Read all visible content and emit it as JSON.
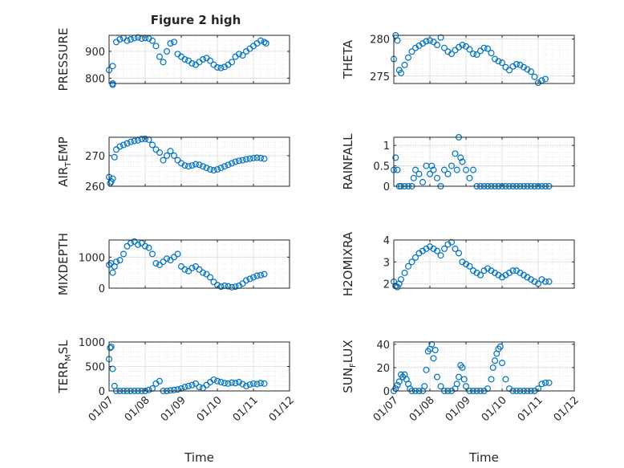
{
  "figure": {
    "title": "Figure 2 high"
  },
  "chart_data": [
    {
      "type": "scatter",
      "ylabel_parts": [
        "PRESSURE"
      ],
      "xlabel": "",
      "xlim": [
        0,
        5
      ],
      "ylim": [
        780,
        960
      ],
      "yticks": [
        800,
        900
      ],
      "xticks": [
        0,
        1,
        2,
        3,
        4,
        5
      ],
      "xticklabels": [
        "01/07",
        "01/08",
        "01/09",
        "01/10",
        "01/11",
        "01/12"
      ],
      "show_xtick_labels": false,
      "grid": true,
      "x": [
        0.0,
        0.1,
        0.1,
        0.1,
        0.2,
        0.3,
        0.4,
        0.5,
        0.6,
        0.7,
        0.8,
        0.9,
        1.0,
        1.1,
        1.2,
        1.3,
        1.4,
        1.5,
        1.6,
        1.7,
        1.8,
        1.9,
        2.0,
        2.1,
        2.2,
        2.3,
        2.4,
        2.5,
        2.6,
        2.7,
        2.8,
        2.9,
        3.0,
        3.1,
        3.2,
        3.3,
        3.4,
        3.5,
        3.6,
        3.7,
        3.8,
        3.9,
        4.0,
        4.1,
        4.2,
        4.3,
        4.35
      ],
      "y": [
        830,
        780,
        775,
        845,
        935,
        945,
        950,
        940,
        945,
        950,
        952,
        948,
        950,
        948,
        940,
        920,
        880,
        860,
        900,
        930,
        935,
        890,
        880,
        870,
        865,
        855,
        850,
        860,
        870,
        875,
        865,
        850,
        840,
        838,
        842,
        850,
        860,
        880,
        890,
        885,
        900,
        910,
        920,
        930,
        940,
        935,
        930
      ]
    },
    {
      "type": "scatter",
      "ylabel_parts": [
        "THETA"
      ],
      "xlabel": "",
      "xlim": [
        0,
        5
      ],
      "ylim": [
        274,
        280.5
      ],
      "yticks": [
        275,
        280
      ],
      "xticks": [
        0,
        1,
        2,
        3,
        4,
        5
      ],
      "xticklabels": [
        "01/07",
        "01/08",
        "01/09",
        "01/10",
        "01/11",
        "01/12"
      ],
      "show_xtick_labels": false,
      "grid": true,
      "x": [
        0.0,
        0.05,
        0.1,
        0.15,
        0.2,
        0.3,
        0.4,
        0.5,
        0.6,
        0.7,
        0.8,
        0.9,
        1.0,
        1.1,
        1.2,
        1.3,
        1.4,
        1.5,
        1.6,
        1.7,
        1.8,
        1.9,
        2.0,
        2.1,
        2.2,
        2.3,
        2.4,
        2.5,
        2.6,
        2.7,
        2.8,
        2.9,
        3.0,
        3.1,
        3.2,
        3.3,
        3.4,
        3.5,
        3.6,
        3.7,
        3.8,
        3.9,
        4.0,
        4.1,
        4.2
      ],
      "y": [
        277.3,
        280.5,
        279.8,
        275.8,
        275.4,
        276.5,
        277.5,
        278.3,
        278.8,
        279.1,
        279.4,
        279.7,
        279.8,
        279.6,
        279.2,
        280.2,
        278.8,
        278.3,
        278.0,
        278.5,
        278.9,
        279.2,
        279.0,
        278.6,
        278.0,
        277.9,
        278.4,
        278.8,
        278.7,
        278.1,
        277.3,
        277.0,
        276.8,
        276.2,
        275.8,
        276.3,
        276.6,
        276.5,
        276.2,
        275.9,
        275.6,
        274.9,
        274.1,
        274.4,
        274.6
      ]
    },
    {
      "type": "scatter",
      "ylabel_parts": [
        "AIR",
        "T",
        "EMP"
      ],
      "xlabel": "",
      "xlim": [
        0,
        5
      ],
      "ylim": [
        260,
        276
      ],
      "yticks": [
        260,
        270
      ],
      "xticks": [
        0,
        1,
        2,
        3,
        4,
        5
      ],
      "xticklabels": [
        "01/07",
        "01/08",
        "01/09",
        "01/10",
        "01/11",
        "01/12"
      ],
      "show_xtick_labels": false,
      "grid": true,
      "x": [
        0.0,
        0.03,
        0.06,
        0.1,
        0.15,
        0.2,
        0.3,
        0.4,
        0.5,
        0.6,
        0.7,
        0.8,
        0.9,
        1.0,
        1.1,
        1.2,
        1.3,
        1.4,
        1.5,
        1.6,
        1.7,
        1.8,
        1.9,
        2.0,
        2.1,
        2.2,
        2.3,
        2.4,
        2.5,
        2.6,
        2.7,
        2.8,
        2.9,
        3.0,
        3.1,
        3.2,
        3.3,
        3.4,
        3.5,
        3.6,
        3.7,
        3.8,
        3.9,
        4.0,
        4.1,
        4.2,
        4.3
      ],
      "y": [
        263,
        261,
        261.5,
        262.5,
        269.5,
        272,
        273,
        273.5,
        274,
        274.5,
        274.8,
        275,
        275.4,
        275.5,
        275.2,
        273.5,
        272,
        271,
        268.5,
        270,
        271.5,
        270,
        268.5,
        267.5,
        266.8,
        266.5,
        266.8,
        267.2,
        267.0,
        266.5,
        266.0,
        265.5,
        265.2,
        265.5,
        266.0,
        266.5,
        267.0,
        267.5,
        268.0,
        268.3,
        268.5,
        268.8,
        269.0,
        269.2,
        269.3,
        269.2,
        269.0
      ]
    },
    {
      "type": "scatter",
      "ylabel_parts": [
        "RAINFALL"
      ],
      "xlabel": "",
      "xlim": [
        0,
        5
      ],
      "ylim": [
        0,
        1.2
      ],
      "yticks": [
        0,
        0.5,
        1
      ],
      "xticks": [
        0,
        1,
        2,
        3,
        4,
        5
      ],
      "xticklabels": [
        "01/07",
        "01/08",
        "01/09",
        "01/10",
        "01/11",
        "01/12"
      ],
      "show_xtick_labels": false,
      "grid": true,
      "x": [
        0.0,
        0.05,
        0.1,
        0.15,
        0.2,
        0.3,
        0.4,
        0.5,
        0.55,
        0.6,
        0.7,
        0.8,
        0.9,
        1.0,
        1.05,
        1.1,
        1.2,
        1.3,
        1.4,
        1.5,
        1.6,
        1.7,
        1.75,
        1.8,
        1.85,
        1.9,
        2.0,
        2.1,
        2.2,
        2.3,
        2.4,
        2.5,
        2.6,
        2.7,
        2.8,
        2.9,
        3.0,
        3.1,
        3.2,
        3.3,
        3.4,
        3.5,
        3.6,
        3.7,
        3.8,
        3.9,
        4.0,
        4.1,
        4.2,
        4.3
      ],
      "y": [
        0.4,
        0.7,
        0.4,
        0,
        0,
        0,
        0,
        0,
        0.2,
        0.4,
        0.3,
        0.1,
        0.5,
        0.3,
        0.5,
        0.4,
        0.2,
        0,
        0.4,
        0.3,
        0.5,
        0.8,
        0.4,
        1.2,
        0.7,
        0.6,
        0.4,
        0.2,
        0.4,
        0,
        0,
        0,
        0,
        0,
        0,
        0,
        0,
        0,
        0,
        0,
        0,
        0,
        0,
        0,
        0,
        0,
        0,
        0,
        0,
        0
      ]
    },
    {
      "type": "scatter",
      "ylabel_parts": [
        "MIXDEPTH"
      ],
      "xlabel": "",
      "xlim": [
        0,
        5
      ],
      "ylim": [
        0,
        1550
      ],
      "yticks": [
        0,
        1000
      ],
      "xticks": [
        0,
        1,
        2,
        3,
        4,
        5
      ],
      "xticklabels": [
        "01/07",
        "01/08",
        "01/09",
        "01/10",
        "01/11",
        "01/12"
      ],
      "show_xtick_labels": false,
      "grid": true,
      "x": [
        0.0,
        0.05,
        0.1,
        0.15,
        0.2,
        0.3,
        0.4,
        0.5,
        0.6,
        0.7,
        0.8,
        0.9,
        1.0,
        1.1,
        1.2,
        1.3,
        1.4,
        1.5,
        1.6,
        1.7,
        1.8,
        1.9,
        2.0,
        2.1,
        2.2,
        2.3,
        2.4,
        2.5,
        2.6,
        2.7,
        2.8,
        2.9,
        3.0,
        3.1,
        3.2,
        3.3,
        3.4,
        3.5,
        3.6,
        3.7,
        3.8,
        3.9,
        4.0,
        4.1,
        4.2,
        4.3
      ],
      "y": [
        750,
        800,
        500,
        700,
        850,
        900,
        1100,
        1350,
        1450,
        1500,
        1400,
        1450,
        1350,
        1300,
        1100,
        800,
        750,
        850,
        950,
        900,
        1000,
        1100,
        700,
        600,
        550,
        650,
        700,
        600,
        500,
        450,
        350,
        200,
        100,
        50,
        80,
        60,
        30,
        50,
        80,
        150,
        250,
        300,
        350,
        400,
        420,
        450
      ]
    },
    {
      "type": "scatter",
      "ylabel_parts": [
        "H2OMIXRA"
      ],
      "xlabel": "",
      "xlim": [
        0,
        5
      ],
      "ylim": [
        1.8,
        4
      ],
      "yticks": [
        2,
        3,
        4
      ],
      "xticks": [
        0,
        1,
        2,
        3,
        4,
        5
      ],
      "xticklabels": [
        "01/07",
        "01/08",
        "01/09",
        "01/10",
        "01/11",
        "01/12"
      ],
      "show_xtick_labels": false,
      "grid": true,
      "x": [
        0.0,
        0.05,
        0.1,
        0.15,
        0.2,
        0.3,
        0.4,
        0.5,
        0.6,
        0.7,
        0.8,
        0.9,
        1.0,
        1.1,
        1.2,
        1.3,
        1.4,
        1.5,
        1.6,
        1.7,
        1.8,
        1.9,
        2.0,
        2.1,
        2.2,
        2.3,
        2.4,
        2.5,
        2.6,
        2.7,
        2.8,
        2.9,
        3.0,
        3.1,
        3.2,
        3.3,
        3.4,
        3.5,
        3.6,
        3.7,
        3.8,
        3.9,
        4.0,
        4.1,
        4.2,
        4.3
      ],
      "y": [
        2.1,
        1.9,
        1.85,
        2.0,
        2.2,
        2.5,
        2.8,
        3.0,
        3.2,
        3.4,
        3.5,
        3.6,
        3.7,
        3.6,
        3.5,
        3.3,
        3.6,
        3.8,
        3.9,
        3.6,
        3.4,
        3.0,
        2.9,
        2.8,
        2.6,
        2.5,
        2.4,
        2.6,
        2.7,
        2.6,
        2.5,
        2.4,
        2.3,
        2.4,
        2.5,
        2.6,
        2.6,
        2.5,
        2.4,
        2.3,
        2.2,
        2.1,
        2.0,
        2.2,
        2.1,
        2.1
      ]
    },
    {
      "type": "scatter",
      "ylabel_parts": [
        "TERR",
        "M",
        "SL"
      ],
      "xlabel": "Time",
      "xlim": [
        0,
        5
      ],
      "ylim": [
        0,
        1000
      ],
      "yticks": [
        0,
        500,
        1000
      ],
      "xticks": [
        0,
        1,
        2,
        3,
        4,
        5
      ],
      "xticklabels": [
        "01/07",
        "01/08",
        "01/09",
        "01/10",
        "01/11",
        "01/12"
      ],
      "show_xtick_labels": true,
      "grid": true,
      "x": [
        0.0,
        0.03,
        0.06,
        0.1,
        0.15,
        0.2,
        0.3,
        0.4,
        0.5,
        0.6,
        0.7,
        0.8,
        0.9,
        1.0,
        1.1,
        1.2,
        1.3,
        1.4,
        1.5,
        1.6,
        1.7,
        1.8,
        1.9,
        2.0,
        2.1,
        2.2,
        2.3,
        2.4,
        2.5,
        2.6,
        2.7,
        2.8,
        2.9,
        3.0,
        3.1,
        3.2,
        3.3,
        3.4,
        3.5,
        3.6,
        3.7,
        3.8,
        3.9,
        4.0,
        4.1,
        4.2,
        4.3
      ],
      "y": [
        650,
        880,
        900,
        450,
        100,
        0,
        0,
        0,
        0,
        0,
        0,
        0,
        0,
        0,
        20,
        50,
        150,
        200,
        0,
        0,
        10,
        20,
        30,
        50,
        80,
        100,
        120,
        150,
        80,
        60,
        120,
        180,
        230,
        200,
        180,
        160,
        150,
        170,
        160,
        180,
        140,
        100,
        130,
        150,
        140,
        160,
        150
      ]
    },
    {
      "type": "scatter",
      "ylabel_parts": [
        "SUN",
        "F",
        "LUX"
      ],
      "xlabel": "Time",
      "xlim": [
        0,
        5
      ],
      "ylim": [
        0,
        42
      ],
      "yticks": [
        0,
        20,
        40
      ],
      "xticks": [
        0,
        1,
        2,
        3,
        4,
        5
      ],
      "xticklabels": [
        "01/07",
        "01/08",
        "01/09",
        "01/10",
        "01/11",
        "01/12"
      ],
      "show_xtick_labels": true,
      "grid": true,
      "x": [
        0.0,
        0.05,
        0.1,
        0.15,
        0.2,
        0.25,
        0.3,
        0.35,
        0.4,
        0.45,
        0.5,
        0.6,
        0.7,
        0.8,
        0.85,
        0.9,
        0.95,
        1.0,
        1.05,
        1.1,
        1.15,
        1.2,
        1.3,
        1.4,
        1.5,
        1.6,
        1.7,
        1.75,
        1.8,
        1.85,
        1.9,
        1.95,
        2.0,
        2.1,
        2.2,
        2.3,
        2.4,
        2.5,
        2.6,
        2.7,
        2.75,
        2.8,
        2.85,
        2.9,
        2.95,
        3.0,
        3.1,
        3.2,
        3.3,
        3.4,
        3.5,
        3.6,
        3.7,
        3.8,
        3.9,
        4.0,
        4.1,
        4.2,
        4.3
      ],
      "y": [
        0,
        2,
        5,
        8,
        14,
        12,
        14,
        10,
        6,
        2,
        0,
        0,
        0,
        0,
        4,
        18,
        34,
        36,
        40,
        28,
        35,
        12,
        4,
        0,
        0,
        0,
        2,
        6,
        12,
        22,
        20,
        10,
        4,
        0,
        0,
        0,
        0,
        0,
        2,
        10,
        20,
        26,
        32,
        36,
        38,
        24,
        10,
        2,
        0,
        0,
        0,
        0,
        0,
        0,
        0,
        2,
        6,
        7,
        7
      ]
    }
  ]
}
